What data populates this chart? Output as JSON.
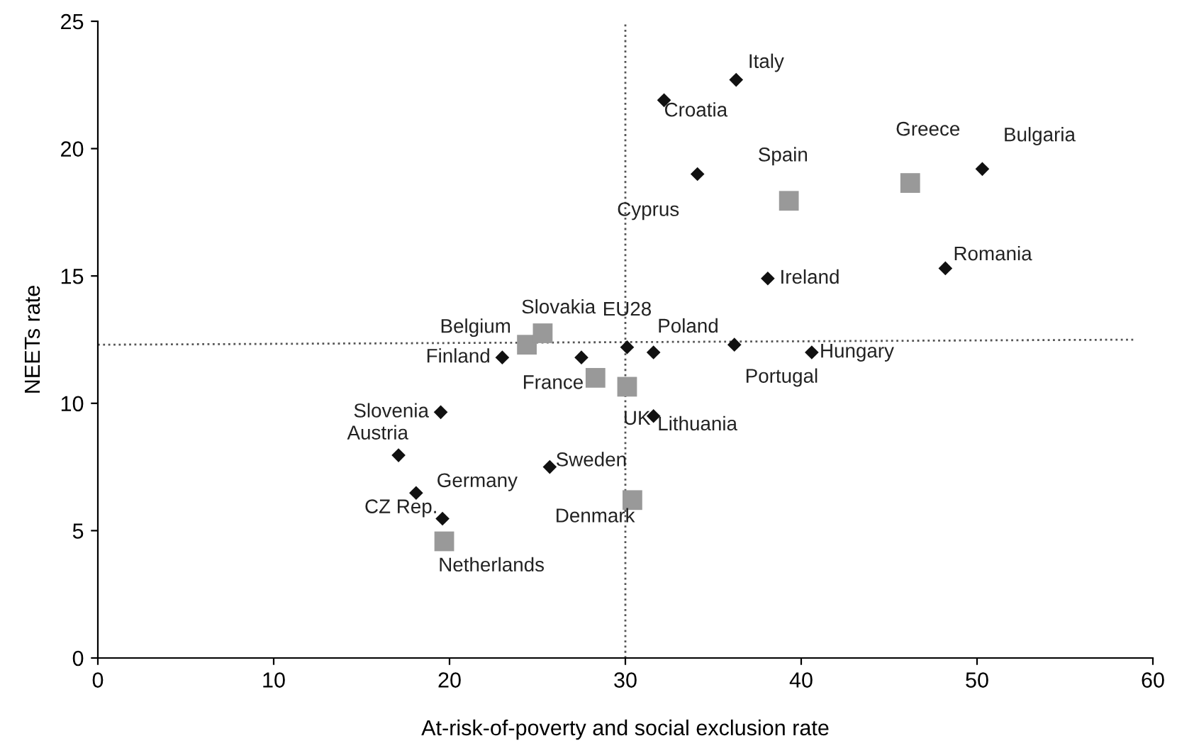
{
  "chart_data": {
    "type": "scatter",
    "xlabel": "At-risk-of-poverty and social exclusion rate",
    "ylabel": "NEETs rate",
    "xlim": [
      0,
      60
    ],
    "xticks": [
      0,
      10,
      20,
      30,
      40,
      50,
      60
    ],
    "ylim": [
      0,
      25
    ],
    "yticks": [
      0,
      5,
      10,
      15,
      20,
      25
    ],
    "grid": false,
    "legend": false,
    "series": [
      {
        "marker": "diamond",
        "color": "#111111",
        "x": [
          36.3,
          32.2,
          34.1,
          50.3,
          48.2,
          38.1,
          30.1,
          31.6,
          36.2,
          40.6,
          23.0,
          27.5,
          19.5,
          17.1,
          25.7,
          18.1,
          19.6,
          31.6
        ],
        "values": [
          22.7,
          21.9,
          19.0,
          19.2,
          15.3,
          14.9,
          12.2,
          12.0,
          12.3,
          12.0,
          11.8,
          11.8,
          9.65,
          7.96,
          7.5,
          6.48,
          5.47,
          9.5
        ]
      },
      {
        "marker": "square",
        "color": "#999999",
        "x": [
          24.4,
          25.3,
          28.3,
          30.1,
          30.4,
          19.7,
          39.3,
          46.2
        ],
        "values": [
          12.3,
          12.75,
          11.0,
          10.65,
          6.2,
          4.58,
          17.95,
          18.65
        ]
      },
      {
        "type": "line",
        "marker": "none",
        "line_style": "dotted",
        "color": "#555555",
        "x": [
          0,
          59
        ],
        "values": [
          12.3,
          12.5
        ]
      }
    ],
    "ref_lines": [
      {
        "axis": "x",
        "value": 30.0,
        "color": "#555555",
        "line_style": "dotted"
      }
    ],
    "annotations": [
      {
        "text": "Italy",
        "x": 36.3,
        "y": 22.7
      },
      {
        "text": "Croatia",
        "x": 32.2,
        "y": 21.9
      },
      {
        "text": "Cyprus",
        "x": 34.1,
        "y": 19.0
      },
      {
        "text": "Spain",
        "x": 39.3,
        "y": 17.95
      },
      {
        "text": "Greece",
        "x": 46.2,
        "y": 18.65
      },
      {
        "text": "Bulgaria",
        "x": 50.3,
        "y": 19.2
      },
      {
        "text": "Romania",
        "x": 48.2,
        "y": 15.3
      },
      {
        "text": "Ireland",
        "x": 38.1,
        "y": 14.9
      },
      {
        "text": "Slovakia",
        "x": 25.3,
        "y": 12.75
      },
      {
        "text": "Belgium",
        "x": 24.4,
        "y": 12.3
      },
      {
        "text": "EU28",
        "x": 30.1,
        "y": 12.2
      },
      {
        "text": "Poland",
        "x": 31.6,
        "y": 12.0
      },
      {
        "text": "Portugal",
        "x": 36.2,
        "y": 12.3
      },
      {
        "text": "Hungary",
        "x": 40.6,
        "y": 12.0
      },
      {
        "text": "Finland",
        "x": 23.0,
        "y": 11.8
      },
      {
        "text": "France",
        "x": 28.3,
        "y": 11.0
      },
      {
        "text": "UK",
        "x": 30.1,
        "y": 10.65
      },
      {
        "text": "Lithuania",
        "x": 31.6,
        "y": 9.5
      },
      {
        "text": "Slovenia",
        "x": 19.5,
        "y": 9.65
      },
      {
        "text": "Austria",
        "x": 17.1,
        "y": 7.96
      },
      {
        "text": "Sweden",
        "x": 25.7,
        "y": 7.5
      },
      {
        "text": "CZ Rep.",
        "x": 18.1,
        "y": 6.48
      },
      {
        "text": "Germany",
        "x": 19.6,
        "y": 5.47
      },
      {
        "text": "Denmark",
        "x": 30.4,
        "y": 6.2
      },
      {
        "text": "Netherlands",
        "x": 19.7,
        "y": 4.58
      }
    ]
  }
}
